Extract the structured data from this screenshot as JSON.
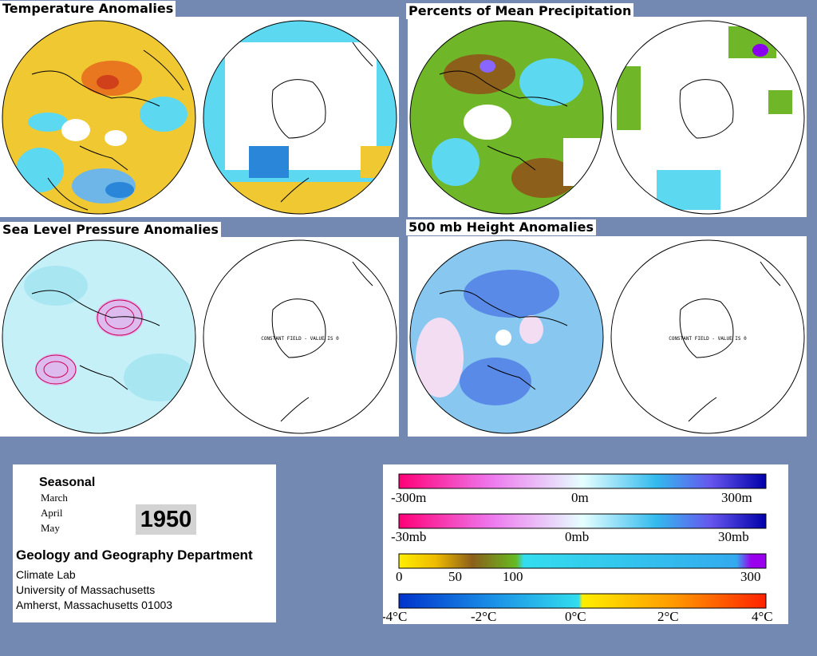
{
  "panels": {
    "temperature": "Temperature Anomalies",
    "precipitation": "Percents of Mean Precipitation",
    "slp": "Sea Level Pressure Anomalies",
    "height": "500 mb Height Anomalies"
  },
  "constant_field": "CONSTANT FIELD - VALUE IS 0",
  "info": {
    "seasonal": "Seasonal",
    "months": [
      "March",
      "April",
      "May"
    ],
    "year": "1950",
    "department": "Geology and Geography Department",
    "lines": [
      "Climate Lab",
      "University of Massachusetts",
      "Amherst, Massachusetts 01003"
    ]
  },
  "legend": {
    "height": {
      "min": "-300m",
      "mid": "0m",
      "max": "300m"
    },
    "pressure": {
      "min": "-30mb",
      "mid": "0mb",
      "max": "30mb"
    },
    "precip": {
      "t0": "0",
      "t1": "50",
      "t2": "100",
      "t3": "300"
    },
    "temp": {
      "t0": "-4°C",
      "t1": "-2°C",
      "t2": "0°C",
      "t3": "2°C",
      "t4": "4°C"
    }
  },
  "colors": {
    "background": "#7389b1",
    "neg_anomaly": "#ff0088",
    "pos_anomaly": "#0000aa",
    "cold": "#1a6ee6",
    "warm": "#ffd21a",
    "hot": "#ff3300"
  }
}
